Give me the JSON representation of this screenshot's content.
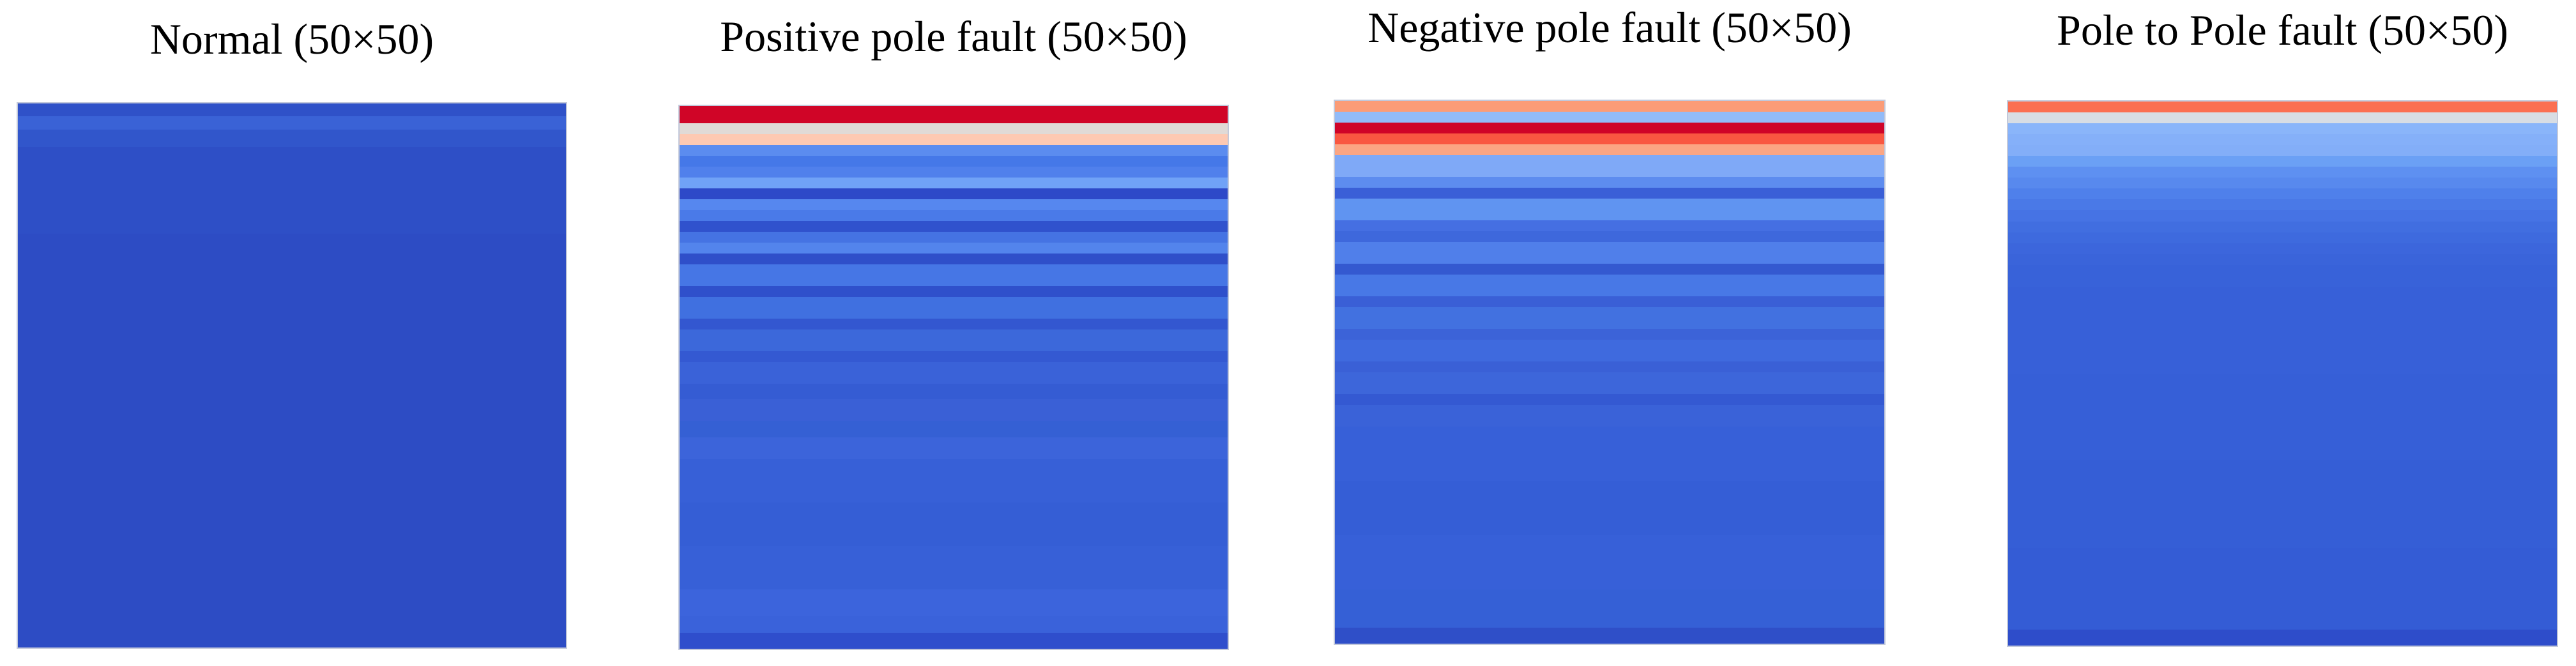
{
  "figure": {
    "background_color": "#ffffff",
    "title_color": "#000000"
  },
  "chart_data": {
    "type": "heatmap",
    "layout": "four side-by-side 50x50 signal heatmaps, horizontal row stripes, blue-to-red diverging colormap",
    "rows": 50,
    "cols": 50,
    "panels": [
      {
        "title": "Normal (50×50)",
        "stripes": [
          {
            "rows": 1.2,
            "color": "#2F51C8"
          },
          {
            "rows": 1.2,
            "color": "#3A62D6"
          },
          {
            "rows": 1.6,
            "color": "#3156CB"
          },
          {
            "rows": 8,
            "color": "#2E4FC6"
          },
          {
            "rows": 38,
            "color": "#2D4CC4"
          }
        ]
      },
      {
        "title": "Positive pole fault (50×50)",
        "stripes": [
          {
            "rows": 1.6,
            "color": "#D00527"
          },
          {
            "rows": 1,
            "color": "#E0DAD6"
          },
          {
            "rows": 1,
            "color": "#FDC9B2"
          },
          {
            "rows": 1,
            "color": "#5B8CEF"
          },
          {
            "rows": 1,
            "color": "#4578E8"
          },
          {
            "rows": 1,
            "color": "#5080EC"
          },
          {
            "rows": 1,
            "color": "#70A2F7"
          },
          {
            "rows": 1,
            "color": "#2D49C8"
          },
          {
            "rows": 1,
            "color": "#5687EF"
          },
          {
            "rows": 1,
            "color": "#4A7AE8"
          },
          {
            "rows": 1,
            "color": "#3052CD"
          },
          {
            "rows": 1,
            "color": "#4573E3"
          },
          {
            "rows": 1,
            "color": "#5384EC"
          },
          {
            "rows": 1,
            "color": "#2F4FC9"
          },
          {
            "rows": 2,
            "color": "#4676E5"
          },
          {
            "rows": 1,
            "color": "#2F50CB"
          },
          {
            "rows": 2,
            "color": "#4070E0"
          },
          {
            "rows": 1,
            "color": "#3357D0"
          },
          {
            "rows": 2,
            "color": "#3C68DA"
          },
          {
            "rows": 1,
            "color": "#3459D2"
          },
          {
            "rows": 2,
            "color": "#3A62D8"
          },
          {
            "rows": 1.4,
            "color": "#355CD3"
          },
          {
            "rows": 2,
            "color": "#3A60D6"
          },
          {
            "rows": 1.5,
            "color": "#3560D4"
          },
          {
            "rows": 2,
            "color": "#3C64DA"
          },
          {
            "rows": 4,
            "color": "#3760D7"
          },
          {
            "rows": 4,
            "color": "#355ED5"
          },
          {
            "rows": 4,
            "color": "#3760D7"
          },
          {
            "rows": 2.5,
            "color": "#3C64DC"
          },
          {
            "rows": 1.5,
            "color": "#3A62DA"
          },
          {
            "rows": 1.5,
            "color": "#2F4ECC"
          }
        ]
      },
      {
        "title": "Negative pole fault (50×50)",
        "stripes": [
          {
            "rows": 1,
            "color": "#FB9C77"
          },
          {
            "rows": 1,
            "color": "#92BBF8"
          },
          {
            "rows": 1,
            "color": "#CF0428"
          },
          {
            "rows": 1,
            "color": "#F95741"
          },
          {
            "rows": 1,
            "color": "#FBA583"
          },
          {
            "rows": 2,
            "color": "#7FA9F7"
          },
          {
            "rows": 1,
            "color": "#5D8CEF"
          },
          {
            "rows": 1,
            "color": "#3A5FD7"
          },
          {
            "rows": 2,
            "color": "#6094F1"
          },
          {
            "rows": 1,
            "color": "#456FE2"
          },
          {
            "rows": 1,
            "color": "#3E68DC"
          },
          {
            "rows": 2,
            "color": "#507FEA"
          },
          {
            "rows": 1,
            "color": "#3459D0"
          },
          {
            "rows": 2,
            "color": "#4878E6"
          },
          {
            "rows": 1,
            "color": "#3A5FD6"
          },
          {
            "rows": 2,
            "color": "#4271E0"
          },
          {
            "rows": 1,
            "color": "#3C63D8"
          },
          {
            "rows": 2,
            "color": "#3F6ADE"
          },
          {
            "rows": 1,
            "color": "#3A60D6"
          },
          {
            "rows": 2,
            "color": "#3D66DA"
          },
          {
            "rows": 1,
            "color": "#3459D2"
          },
          {
            "rows": 2,
            "color": "#3A62D8"
          },
          {
            "rows": 5,
            "color": "#3760D8"
          },
          {
            "rows": 5,
            "color": "#355ED6"
          },
          {
            "rows": 5,
            "color": "#3760D8"
          },
          {
            "rows": 3.5,
            "color": "#3560D6"
          },
          {
            "rows": 1.5,
            "color": "#2F4FC8"
          }
        ]
      },
      {
        "title": "Pole to Pole fault (50×50)",
        "stripes": [
          {
            "rows": 1,
            "color": "#FB6F52"
          },
          {
            "rows": 1,
            "color": "#D8DDE4"
          },
          {
            "rows": 1,
            "color": "#8AB5FA"
          },
          {
            "rows": 1,
            "color": "#85B0F9"
          },
          {
            "rows": 1,
            "color": "#83AEF8"
          },
          {
            "rows": 1,
            "color": "#6BA0F5"
          },
          {
            "rows": 1,
            "color": "#5E90F1"
          },
          {
            "rows": 1,
            "color": "#5889EE"
          },
          {
            "rows": 1,
            "color": "#4F80EB"
          },
          {
            "rows": 1,
            "color": "#4A79E7"
          },
          {
            "rows": 1,
            "color": "#4673E4"
          },
          {
            "rows": 1,
            "color": "#416EE0"
          },
          {
            "rows": 1,
            "color": "#3E6ADE"
          },
          {
            "rows": 1,
            "color": "#3C66DC"
          },
          {
            "rows": 1,
            "color": "#3A64DA"
          },
          {
            "rows": 2,
            "color": "#3862D9"
          },
          {
            "rows": 8,
            "color": "#3760D8"
          },
          {
            "rows": 8,
            "color": "#365FD7"
          },
          {
            "rows": 8,
            "color": "#355ED6"
          },
          {
            "rows": 7.5,
            "color": "#345CD5"
          },
          {
            "rows": 1.5,
            "color": "#2E4DCA"
          }
        ]
      }
    ]
  }
}
